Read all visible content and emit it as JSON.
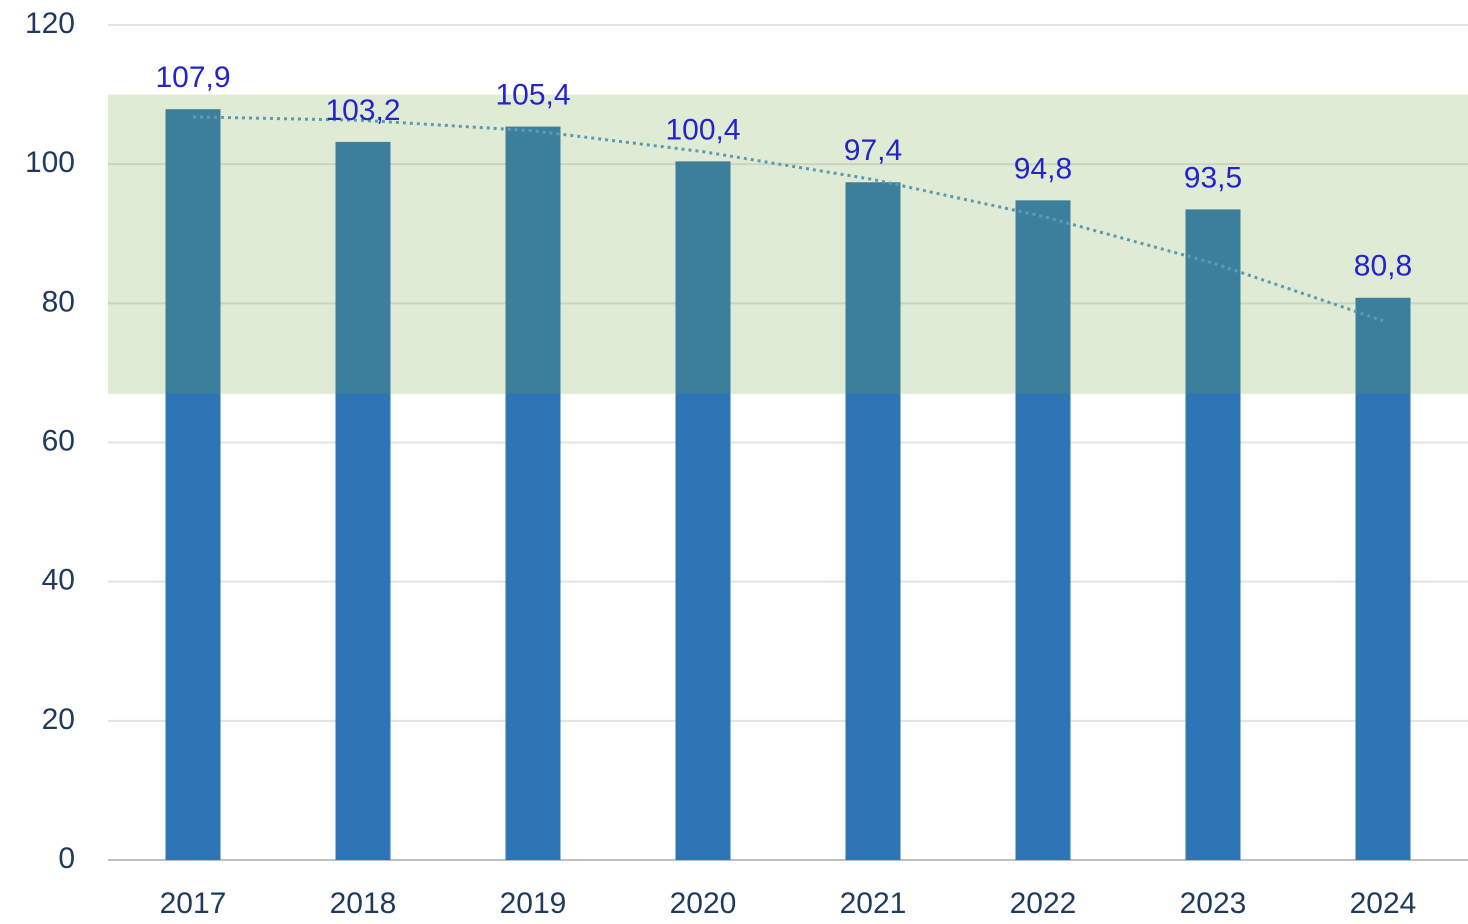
{
  "chart_data": {
    "type": "bar",
    "categories": [
      "2017",
      "2018",
      "2019",
      "2020",
      "2021",
      "2022",
      "2023",
      "2024"
    ],
    "values": [
      107.9,
      103.2,
      105.4,
      100.4,
      97.4,
      94.8,
      93.5,
      80.8
    ],
    "value_labels": [
      "107,9",
      "103,2",
      "105,4",
      "100,4",
      "97,4",
      "94,8",
      "93,5",
      "80,8"
    ],
    "color": "#2e75b6",
    "label_color": "#2323d0",
    "band": {
      "from": 67,
      "to": 110,
      "color": "#71a644",
      "opacity": 0.225
    },
    "trend": {
      "color": "#5b9bb0",
      "values": [
        106.8,
        106.3,
        104.8,
        101.8,
        97.8,
        92.5,
        85.8,
        77.5
      ]
    },
    "ylim": [
      0,
      120
    ],
    "yticks": [
      0,
      20,
      40,
      60,
      80,
      100,
      120
    ],
    "grid": true
  }
}
